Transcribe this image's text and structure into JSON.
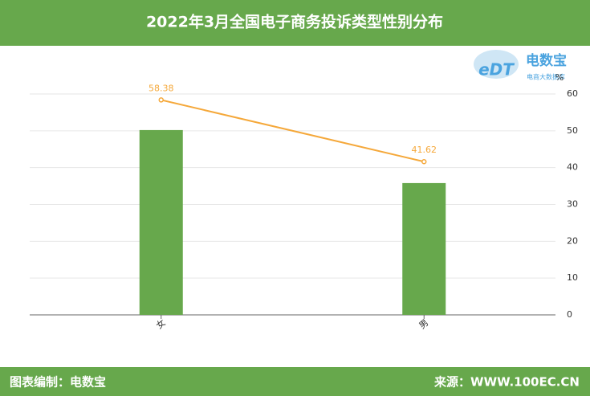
{
  "chart_data": {
    "type": "bar",
    "title": "2022年3月全国电子商务投诉类型性别分布",
    "categories": [
      "女",
      "男"
    ],
    "series": [
      {
        "type": "bar",
        "color": "#67a84c",
        "values": [
          50.2,
          35.8
        ]
      },
      {
        "type": "line",
        "color": "#f5a83a",
        "values": [
          58.38,
          41.62
        ]
      }
    ],
    "y_unit": "%",
    "ylim": [
      0,
      60
    ],
    "yticks": [
      0,
      10,
      20,
      30,
      40,
      50,
      60
    ],
    "grid": true
  },
  "logo": {
    "mark": "eDT",
    "name": "电数宝",
    "tagline": "电商大数据库"
  },
  "footer": {
    "left": "图表编制：电数宝",
    "right": "来源：WWW.100EC.CN"
  }
}
